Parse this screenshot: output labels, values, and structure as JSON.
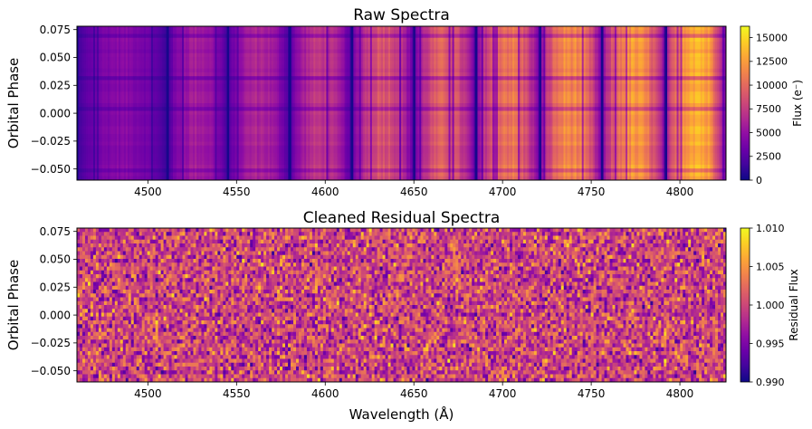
{
  "chart_data": [
    {
      "type": "heatmap",
      "title": "Raw Spectra",
      "xlabel": "",
      "ylabel": "Orbital Phase",
      "xlim": [
        4460,
        4826
      ],
      "ylim": [
        -0.06,
        0.078
      ],
      "xticks": [
        4500,
        4550,
        4600,
        4650,
        4700,
        4750,
        4800
      ],
      "yticks": [
        0.075,
        0.05,
        0.025,
        0.0,
        -0.025,
        -0.05
      ],
      "xtick_labels": [
        "4500",
        "4550",
        "4600",
        "4650",
        "4700",
        "4750",
        "4800"
      ],
      "ytick_labels": [
        "0.075",
        "0.050",
        "0.025",
        "0.000",
        "−0.025",
        "−0.050"
      ],
      "colormap": "plasma",
      "colorbar": {
        "label": "Flux (e⁻)",
        "range": [
          0,
          16200
        ],
        "ticks": [
          0,
          2500,
          5000,
          7500,
          10000,
          12500,
          15000
        ],
        "tick_labels": [
          "0",
          "2500",
          "5000",
          "7500",
          "10000",
          "12500",
          "15000"
        ]
      },
      "orders": [
        {
          "start": 4460,
          "end": 4511,
          "peak_flux": 5000
        },
        {
          "start": 4511,
          "end": 4545,
          "peak_flux": 6500
        },
        {
          "start": 4545,
          "end": 4580,
          "peak_flux": 7000
        },
        {
          "start": 4580,
          "end": 4615,
          "peak_flux": 8000
        },
        {
          "start": 4615,
          "end": 4650,
          "peak_flux": 10000
        },
        {
          "start": 4650,
          "end": 4685,
          "peak_flux": 10500
        },
        {
          "start": 4685,
          "end": 4721,
          "peak_flux": 12000
        },
        {
          "start": 4721,
          "end": 4756,
          "peak_flux": 13000
        },
        {
          "start": 4756,
          "end": 4792,
          "peak_flux": 13500
        },
        {
          "start": 4792,
          "end": 4826,
          "peak_flux": 15500
        }
      ]
    },
    {
      "type": "heatmap",
      "title": "Cleaned Residual Spectra",
      "xlabel": "Wavelength (Å)",
      "ylabel": "Orbital Phase",
      "xlim": [
        4460,
        4826
      ],
      "ylim": [
        -0.06,
        0.078
      ],
      "xticks": [
        4500,
        4550,
        4600,
        4650,
        4700,
        4750,
        4800
      ],
      "yticks": [
        0.075,
        0.05,
        0.025,
        0.0,
        -0.025,
        -0.05
      ],
      "xtick_labels": [
        "4500",
        "4550",
        "4600",
        "4650",
        "4700",
        "4750",
        "4800"
      ],
      "ytick_labels": [
        "0.075",
        "0.050",
        "0.025",
        "0.000",
        "−0.025",
        "−0.050"
      ],
      "colormap": "plasma",
      "colorbar": {
        "label": "Residual Flux",
        "range": [
          0.99,
          1.01
        ],
        "ticks": [
          0.99,
          0.995,
          1.0,
          1.005,
          1.01
        ],
        "tick_labels": [
          "0.990",
          "0.995",
          "1.000",
          "1.005",
          "1.010"
        ]
      },
      "residual_mean": 1.0,
      "residual_scatter": 0.004
    }
  ]
}
